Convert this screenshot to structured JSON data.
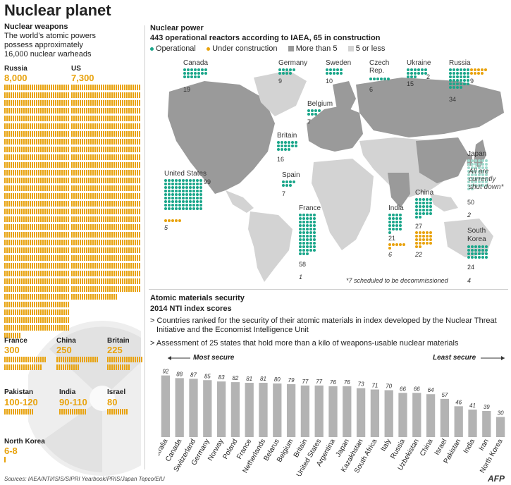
{
  "title": "Nuclear planet",
  "weapons": {
    "heading": "Nuclear weapons",
    "desc_line1": "The world’s atomic powers",
    "desc_line2": "possess approximately",
    "desc_line3": "16,000 nuclear warheads",
    "countries": [
      {
        "name": "Russia",
        "count": "8,000",
        "value": 8000
      },
      {
        "name": "US",
        "count": "7,300",
        "value": 7300
      },
      {
        "name": "France",
        "count": "300",
        "value": 300
      },
      {
        "name": "China",
        "count": "250",
        "value": 250
      },
      {
        "name": "Britain",
        "count": "225",
        "value": 225
      },
      {
        "name": "Pakistan",
        "count": "100-120",
        "value": 110
      },
      {
        "name": "India",
        "count": "90-110",
        "value": 100
      },
      {
        "name": "Israel",
        "count": "80",
        "value": 80
      },
      {
        "name": "North Korea",
        "count": "6-8",
        "value": 7
      }
    ]
  },
  "power": {
    "heading": "Nuclear power",
    "subheading": "443 operational reactors according to IAEA, 65 in construction",
    "legend": {
      "operational": "Operational",
      "construction": "Under construction",
      "more5": "More than 5",
      "less5": "5 or less"
    },
    "countries": [
      {
        "name": "Canada",
        "operational": "19",
        "construction": ""
      },
      {
        "name": "Germany",
        "operational": "9",
        "construction": ""
      },
      {
        "name": "Sweden",
        "operational": "10",
        "construction": ""
      },
      {
        "name": "Czech Rep.",
        "operational": "6",
        "construction": ""
      },
      {
        "name": "Ukraine",
        "operational": "15",
        "construction": "2"
      },
      {
        "name": "Russia",
        "operational": "34",
        "construction": "9"
      },
      {
        "name": "Belgium",
        "operational": "7",
        "construction": ""
      },
      {
        "name": "Britain",
        "operational": "16",
        "construction": ""
      },
      {
        "name": "United States",
        "operational": "99",
        "construction": "5"
      },
      {
        "name": "Spain",
        "operational": "7",
        "construction": ""
      },
      {
        "name": "France",
        "operational": "58",
        "construction": "1"
      },
      {
        "name": "India",
        "operational": "21",
        "construction": "6"
      },
      {
        "name": "China",
        "operational": "27",
        "construction": "22"
      },
      {
        "name": "Japan",
        "operational": "50",
        "construction": "2"
      },
      {
        "name": "South Korea",
        "operational": "24",
        "construction": "4"
      }
    ],
    "japan_note": "All are currently shut down*",
    "footnote": "*7 scheduled to be decommissioned"
  },
  "security": {
    "heading": "Atomic materials security",
    "subheading": "2014 NTI index scores",
    "bullet1_line1": "Countries ranked for the security of their atomic materials in index developed by the Nuclear Threat",
    "bullet1_line2": "Initiative and the Economist Intelligence Unit",
    "bullet2": "Assessment of 25 states that hold more than a kilo of weapons-usable nuclear materials",
    "most_secure": "Most secure",
    "least_secure": "Least secure"
  },
  "chart_data": {
    "type": "bar",
    "title": "2014 NTI index scores",
    "xlabel": "",
    "ylabel": "",
    "ylim": [
      0,
      100
    ],
    "categories": [
      "Australia",
      "Canada",
      "Switzerland",
      "Germany",
      "Norway",
      "Poland",
      "France",
      "Netherlands",
      "Belarus",
      "Belgium",
      "Britain",
      "United States",
      "Argentina",
      "Japan",
      "Kazakhstan",
      "South Africa",
      "Italy",
      "Russia",
      "Uzbekistan",
      "China",
      "Israel",
      "Pakistan",
      "India",
      "Iran",
      "North Korea"
    ],
    "values": [
      92,
      88,
      87,
      85,
      83,
      82,
      81,
      81,
      80,
      79,
      77,
      77,
      76,
      76,
      73,
      71,
      70,
      66,
      66,
      64,
      57,
      46,
      41,
      39,
      30
    ]
  },
  "colors": {
    "weapons": "#e8a20c",
    "operational": "#1aa68a",
    "construction": "#e8a20c",
    "bars": "#b3b3b3"
  },
  "source": "Sources: IAEA/NTI/ISIS/SIPRI Yearbook/PRIS/Japan Tepco/EIU",
  "agency": "AFP"
}
